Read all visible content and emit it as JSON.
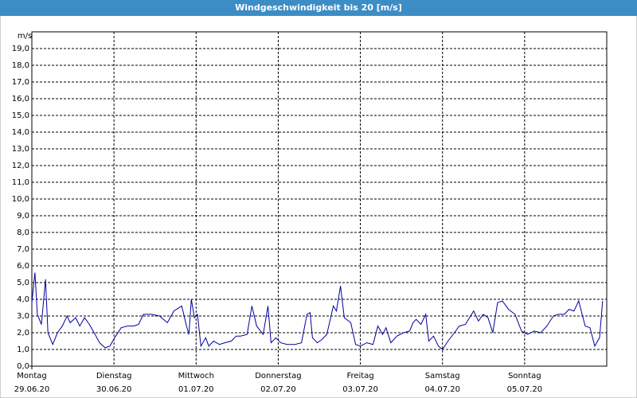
{
  "chart_data": {
    "type": "line",
    "title": "Windgeschwindigkeit bis 20 [m/s]",
    "y_label": "m/s",
    "color": "#0000a0",
    "grid": true,
    "xlim": [
      0,
      168
    ],
    "ylim": [
      0,
      20
    ],
    "xticks": [
      {
        "value": 0,
        "label": [
          "Montag",
          "29.06.20"
        ]
      },
      {
        "value": 24,
        "label": [
          "Dienstag",
          "30.06.20"
        ]
      },
      {
        "value": 48,
        "label": [
          "Mittwoch",
          "01.07.20"
        ]
      },
      {
        "value": 72,
        "label": [
          "Donnerstag",
          "02.07.20"
        ]
      },
      {
        "value": 96,
        "label": [
          "Freitag",
          "03.07.20"
        ]
      },
      {
        "value": 120,
        "label": [
          "Samstag",
          "04.07.20"
        ]
      },
      {
        "value": 144,
        "label": [
          "Sonntag",
          "05.07.20"
        ]
      }
    ],
    "yticks": [
      {
        "value": 0,
        "label": "0,0"
      },
      {
        "value": 1,
        "label": "1,0"
      },
      {
        "value": 2,
        "label": "2,0"
      },
      {
        "value": 3,
        "label": "3,0"
      },
      {
        "value": 4,
        "label": "4,0"
      },
      {
        "value": 5,
        "label": "5,0"
      },
      {
        "value": 6,
        "label": "6,0"
      },
      {
        "value": 7,
        "label": "7,0"
      },
      {
        "value": 8,
        "label": "8,0"
      },
      {
        "value": 9,
        "label": "9,0"
      },
      {
        "value": 10,
        "label": "10,0"
      },
      {
        "value": 11,
        "label": "11,0"
      },
      {
        "value": 12,
        "label": "12,0"
      },
      {
        "value": 13,
        "label": "13,0"
      },
      {
        "value": 14,
        "label": "14,0"
      },
      {
        "value": 15,
        "label": "15,0"
      },
      {
        "value": 16,
        "label": "16,0"
      },
      {
        "value": 17,
        "label": "17,0"
      },
      {
        "value": 18,
        "label": "18,0"
      },
      {
        "value": 19,
        "label": "19,0"
      }
    ],
    "x": [
      0,
      0.9,
      1.6,
      2.8,
      4.0,
      4.7,
      6.1,
      7.5,
      8.9,
      10.3,
      11.2,
      12.8,
      14.0,
      15.4,
      16.8,
      18.2,
      19.8,
      21.4,
      22.8,
      24.2,
      26.1,
      28.0,
      29.8,
      31.2,
      32.6,
      35.0,
      37.3,
      39.6,
      41.5,
      43.8,
      45.2,
      45.9,
      46.6,
      47.5,
      48.4,
      49.4,
      50.8,
      51.7,
      53.1,
      54.8,
      56.4,
      58.3,
      59.7,
      61.0,
      62.9,
      64.3,
      65.7,
      67.6,
      69.0,
      69.9,
      71.3,
      72.7,
      74.6,
      76.9,
      78.8,
      80.4,
      81.3,
      82.0,
      83.4,
      84.8,
      86.2,
      88.1,
      89.0,
      90.2,
      91.3,
      93.2,
      94.6,
      96.0,
      97.9,
      99.7,
      101.1,
      102.5,
      103.5,
      104.9,
      106.7,
      108.6,
      110.4,
      111.4,
      112.3,
      113.7,
      115.1,
      116.0,
      117.4,
      118.8,
      120.0,
      121.6,
      123.5,
      124.9,
      126.7,
      128.2,
      129.1,
      130.5,
      131.9,
      133.3,
      134.7,
      136.1,
      137.5,
      139.3,
      141.2,
      143.1,
      144.9,
      146.8,
      148.7,
      150.5,
      152.4,
      153.8,
      155.6,
      157.0,
      158.4,
      159.8,
      161.7,
      163.1,
      164.5,
      165.9,
      166.8
    ],
    "values": [
      3.8,
      5.6,
      3.1,
      2.5,
      5.2,
      2.0,
      1.3,
      2.0,
      2.4,
      3.0,
      2.6,
      2.9,
      2.4,
      2.9,
      2.5,
      2.0,
      1.4,
      1.1,
      1.2,
      1.7,
      2.3,
      2.4,
      2.4,
      2.5,
      3.1,
      3.1,
      3.0,
      2.6,
      3.3,
      3.6,
      2.4,
      1.9,
      4.0,
      2.9,
      3.1,
      1.2,
      1.7,
      1.2,
      1.5,
      1.3,
      1.4,
      1.5,
      1.8,
      1.8,
      1.9,
      3.6,
      2.4,
      1.9,
      3.6,
      1.4,
      1.7,
      1.4,
      1.3,
      1.3,
      1.4,
      3.1,
      3.2,
      1.7,
      1.4,
      1.6,
      1.9,
      3.6,
      3.3,
      4.8,
      2.9,
      2.6,
      1.3,
      1.2,
      1.4,
      1.3,
      2.4,
      1.9,
      2.3,
      1.4,
      1.8,
      2.0,
      2.1,
      2.6,
      2.8,
      2.5,
      3.1,
      1.5,
      1.8,
      1.2,
      1.0,
      1.5,
      2.0,
      2.4,
      2.5,
      3.0,
      3.3,
      2.7,
      3.1,
      2.9,
      2.0,
      3.8,
      3.9,
      3.4,
      3.1,
      2.1,
      1.9,
      2.1,
      2.0,
      2.4,
      3.0,
      3.1,
      3.1,
      3.4,
      3.3,
      3.9,
      2.4,
      2.3,
      1.2,
      1.7,
      3.9
    ]
  }
}
